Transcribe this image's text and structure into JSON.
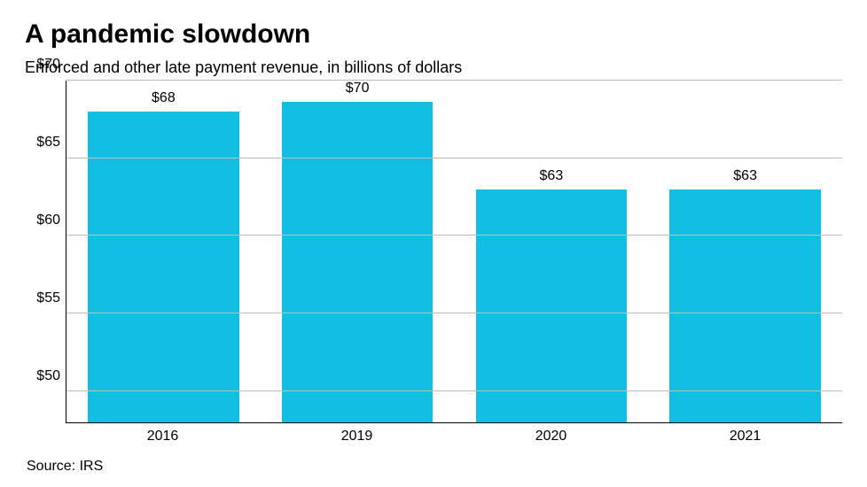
{
  "title": "A pandemic slowdown",
  "subtitle": "Enforced and other late payment revenue, in billions of dollars",
  "source": "Source: IRS",
  "chart": {
    "type": "bar",
    "categories": [
      "2016",
      "2019",
      "2020",
      "2021"
    ],
    "values": [
      68,
      70,
      63,
      63
    ],
    "value_labels": [
      "$68",
      "$70",
      "$63",
      "$63"
    ],
    "bar_color": "#12bfe3",
    "ylim_min": 48,
    "ylim_max": 70,
    "y_ticks": [
      50,
      55,
      60,
      65,
      70
    ],
    "y_tick_labels": [
      "$50",
      "$55",
      "$60",
      "$65",
      "$70"
    ],
    "grid_color": "#bfbfbf",
    "axis_color": "#000000",
    "background_color": "#ffffff",
    "title_fontsize": 30,
    "subtitle_fontsize": 18,
    "label_fontsize": 16,
    "bar_width_ratio": 0.78
  }
}
